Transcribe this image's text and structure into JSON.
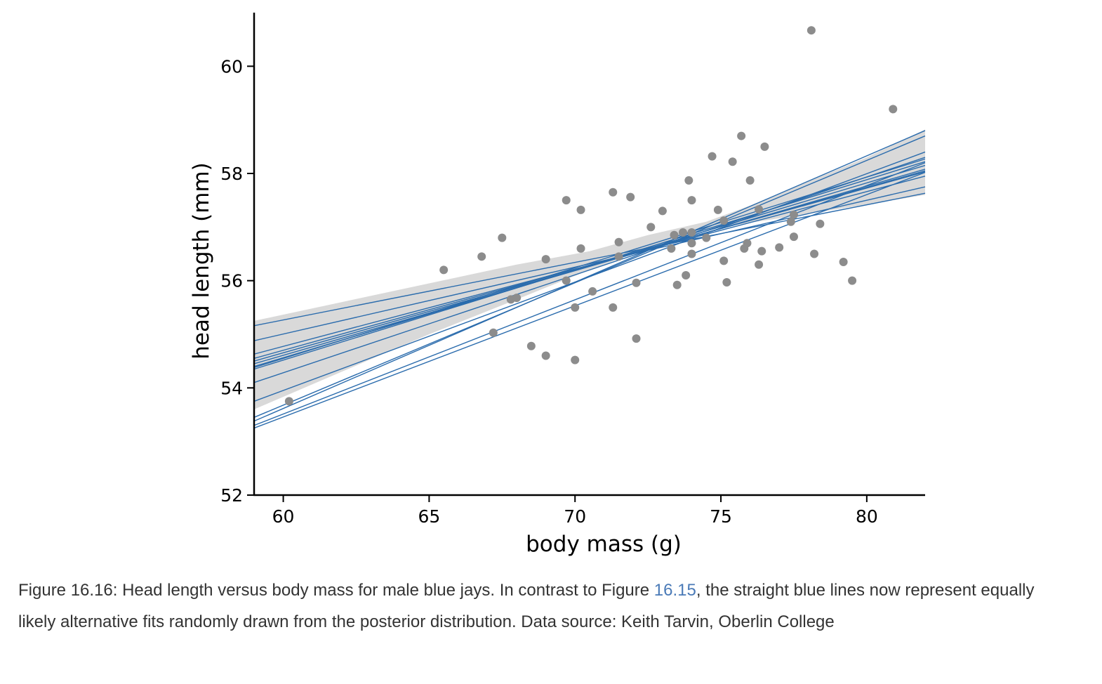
{
  "chart_data": {
    "type": "scatter",
    "xlabel": "body mass (g)",
    "ylabel": "head length (mm)",
    "xlim": [
      59,
      82
    ],
    "ylim": [
      52,
      61
    ],
    "xticks": [
      60,
      65,
      70,
      75,
      80
    ],
    "yticks": [
      52,
      54,
      56,
      58,
      60
    ],
    "grid": false,
    "points": [
      [
        60.2,
        53.75
      ],
      [
        65.5,
        56.2
      ],
      [
        66.8,
        56.45
      ],
      [
        67.5,
        56.8
      ],
      [
        67.2,
        55.03
      ],
      [
        67.8,
        55.65
      ],
      [
        68.0,
        55.68
      ],
      [
        68.5,
        54.78
      ],
      [
        69.0,
        56.4
      ],
      [
        69.0,
        54.6
      ],
      [
        69.7,
        57.5
      ],
      [
        69.7,
        56.0
      ],
      [
        70.0,
        55.5
      ],
      [
        70.0,
        54.52
      ],
      [
        70.2,
        57.32
      ],
      [
        70.2,
        56.6
      ],
      [
        70.6,
        55.8
      ],
      [
        71.3,
        57.65
      ],
      [
        71.3,
        55.5
      ],
      [
        71.5,
        56.72
      ],
      [
        71.5,
        56.45
      ],
      [
        71.9,
        57.56
      ],
      [
        72.1,
        55.96
      ],
      [
        72.1,
        54.92
      ],
      [
        72.6,
        57.0
      ],
      [
        73.0,
        57.3
      ],
      [
        73.3,
        56.6
      ],
      [
        73.4,
        56.85
      ],
      [
        73.5,
        55.92
      ],
      [
        73.7,
        56.9
      ],
      [
        73.8,
        56.1
      ],
      [
        73.9,
        57.87
      ],
      [
        74.0,
        56.9
      ],
      [
        74.0,
        57.5
      ],
      [
        74.0,
        56.7
      ],
      [
        74.0,
        56.5
      ],
      [
        74.5,
        56.8
      ],
      [
        74.7,
        58.32
      ],
      [
        74.9,
        57.32
      ],
      [
        75.1,
        57.12
      ],
      [
        75.1,
        56.37
      ],
      [
        75.2,
        55.97
      ],
      [
        75.4,
        58.22
      ],
      [
        75.7,
        58.7
      ],
      [
        75.8,
        56.6
      ],
      [
        75.9,
        56.7
      ],
      [
        76.0,
        57.87
      ],
      [
        76.3,
        57.33
      ],
      [
        76.3,
        56.3
      ],
      [
        76.4,
        56.55
      ],
      [
        76.5,
        58.5
      ],
      [
        77.0,
        56.62
      ],
      [
        77.4,
        57.1
      ],
      [
        77.5,
        57.23
      ],
      [
        77.5,
        56.82
      ],
      [
        78.1,
        60.67
      ],
      [
        78.2,
        56.5
      ],
      [
        78.4,
        57.06
      ],
      [
        79.2,
        56.35
      ],
      [
        79.5,
        56.0
      ],
      [
        80.9,
        59.2
      ]
    ],
    "band": {
      "x": [
        59,
        62,
        65,
        68,
        70.5,
        72.5,
        74.5,
        76,
        78,
        80,
        82
      ],
      "lower": [
        53.6,
        54.3,
        55.0,
        55.65,
        56.2,
        56.6,
        56.95,
        57.08,
        57.25,
        57.42,
        57.6
      ],
      "upper": [
        55.25,
        55.6,
        55.95,
        56.3,
        56.55,
        56.85,
        57.1,
        57.4,
        57.85,
        58.3,
        58.82
      ]
    },
    "fits": [
      [
        55.16,
        57.63
      ],
      [
        54.88,
        57.75
      ],
      [
        54.63,
        57.95
      ],
      [
        54.55,
        58.03
      ],
      [
        54.5,
        58.05
      ],
      [
        54.45,
        58.08
      ],
      [
        54.4,
        58.15
      ],
      [
        54.35,
        58.22
      ],
      [
        54.38,
        58.27
      ],
      [
        54.1,
        58.3
      ],
      [
        53.75,
        58.4
      ],
      [
        53.45,
        58.7
      ],
      [
        53.38,
        58.8
      ],
      [
        53.3,
        58.2
      ],
      [
        53.25,
        58.02
      ]
    ],
    "point_color": "#8c8c8c",
    "line_color": "#2b6cad",
    "band_color": "#d9d9d9"
  },
  "caption": {
    "before": "Figure 16.16: Head length versus body mass for male blue jays. In contrast to Figure ",
    "link": "16.15",
    "after": ", the straight blue lines now represent equally likely alternative fits randomly drawn from the posterior distribution. Data source: Keith Tarvin, Oberlin College"
  }
}
